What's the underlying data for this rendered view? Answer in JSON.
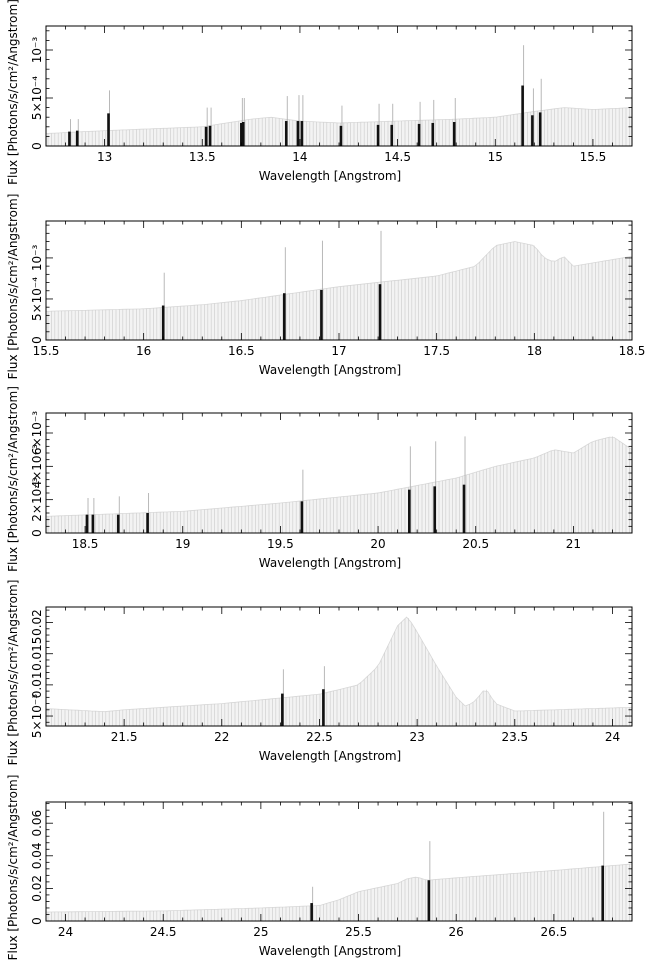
{
  "chart_data": [
    {
      "type": "bar",
      "xlabel": "Wavelength [Angstrom]",
      "ylabel": "Flux [Photons/s/cm²/Angstrom]",
      "xlim": [
        12.7,
        15.7
      ],
      "ylim": [
        0,
        0.00125
      ],
      "x_ticks": [
        {
          "v": 13,
          "label": "13"
        },
        {
          "v": 13.5,
          "label": "13.5"
        },
        {
          "v": 14,
          "label": "14"
        },
        {
          "v": 14.5,
          "label": "14.5"
        },
        {
          "v": 15,
          "label": "15"
        },
        {
          "v": 15.5,
          "label": "15.5"
        }
      ],
      "y_ticks": [
        {
          "v": 0,
          "label": "0"
        },
        {
          "v": 0.0005,
          "label": "5×10⁻⁴"
        },
        {
          "v": 0.001,
          "label": "10⁻³"
        }
      ],
      "continuum": {
        "x": [
          12.7,
          13.0,
          13.5,
          13.75,
          13.85,
          14.0,
          14.2,
          14.5,
          14.8,
          15.0,
          15.2,
          15.35,
          15.5,
          15.7
        ],
        "y": [
          0.00013,
          0.00016,
          0.0002,
          0.00028,
          0.0003,
          0.00026,
          0.00024,
          0.00026,
          0.00028,
          0.0003,
          0.00036,
          0.0004,
          0.00038,
          0.0004
        ]
      },
      "lines": [
        {
          "x": 12.82,
          "y": 0.00015,
          "err": 0.00028
        },
        {
          "x": 12.86,
          "y": 0.00016,
          "err": 0.00028
        },
        {
          "x": 13.02,
          "y": 0.00034,
          "err": 0.00058
        },
        {
          "x": 13.52,
          "y": 0.0002,
          "err": 0.0004
        },
        {
          "x": 13.54,
          "y": 0.00021,
          "err": 0.0004
        },
        {
          "x": 13.7,
          "y": 0.00024,
          "err": 0.0005
        },
        {
          "x": 13.71,
          "y": 0.00025,
          "err": 0.0005
        },
        {
          "x": 13.93,
          "y": 0.00026,
          "err": 0.00052
        },
        {
          "x": 13.99,
          "y": 0.00026,
          "err": 0.00053
        },
        {
          "x": 14.01,
          "y": 0.00026,
          "err": 0.00053
        },
        {
          "x": 14.21,
          "y": 0.00021,
          "err": 0.00042
        },
        {
          "x": 14.4,
          "y": 0.00022,
          "err": 0.00044
        },
        {
          "x": 14.47,
          "y": 0.00022,
          "err": 0.00044
        },
        {
          "x": 14.61,
          "y": 0.00023,
          "err": 0.00046
        },
        {
          "x": 14.68,
          "y": 0.00024,
          "err": 0.00048
        },
        {
          "x": 14.79,
          "y": 0.00025,
          "err": 0.0005
        },
        {
          "x": 15.14,
          "y": 0.00063,
          "err": 0.00105
        },
        {
          "x": 15.19,
          "y": 0.00032,
          "err": 0.0006
        },
        {
          "x": 15.23,
          "y": 0.00035,
          "err": 0.0007
        }
      ]
    },
    {
      "type": "bar",
      "xlabel": "Wavelength [Angstrom]",
      "ylabel": "Flux [Photons/s/cm²/Angstrom]",
      "xlim": [
        15.5,
        18.5
      ],
      "ylim": [
        0,
        0.00145
      ],
      "x_ticks": [
        {
          "v": 15.5,
          "label": "15.5"
        },
        {
          "v": 16,
          "label": "16"
        },
        {
          "v": 16.5,
          "label": "16.5"
        },
        {
          "v": 17,
          "label": "17"
        },
        {
          "v": 17.5,
          "label": "17.5"
        },
        {
          "v": 18,
          "label": "18"
        },
        {
          "v": 18.5,
          "label": "18.5"
        }
      ],
      "y_ticks": [
        {
          "v": 0,
          "label": "0"
        },
        {
          "v": 0.0005,
          "label": "5×10⁻⁴"
        },
        {
          "v": 0.001,
          "label": "10⁻³"
        }
      ],
      "continuum": {
        "x": [
          15.5,
          16.0,
          16.3,
          16.5,
          17.0,
          17.5,
          17.7,
          17.8,
          17.9,
          18.0,
          18.05,
          18.1,
          18.15,
          18.2,
          18.5
        ],
        "y": [
          0.00035,
          0.00038,
          0.00043,
          0.00048,
          0.00065,
          0.00078,
          0.0009,
          0.00115,
          0.0012,
          0.00115,
          0.001,
          0.00095,
          0.00102,
          0.0009,
          0.00102
        ]
      },
      "lines": [
        {
          "x": 16.1,
          "y": 0.00042,
          "err": 0.00082
        },
        {
          "x": 16.72,
          "y": 0.00057,
          "err": 0.00113
        },
        {
          "x": 16.91,
          "y": 0.00061,
          "err": 0.00121
        },
        {
          "x": 17.21,
          "y": 0.00068,
          "err": 0.00133
        }
      ]
    },
    {
      "type": "bar",
      "xlabel": "Wavelength [Angstrom]",
      "ylabel": "Flux [Photons/s/cm²/Angstrom]",
      "xlim": [
        18.3,
        21.3
      ],
      "ylim": [
        0,
        0.0072
      ],
      "x_ticks": [
        {
          "v": 18.5,
          "label": "18.5"
        },
        {
          "v": 19,
          "label": "19"
        },
        {
          "v": 19.5,
          "label": "19.5"
        },
        {
          "v": 20,
          "label": "20"
        },
        {
          "v": 20.5,
          "label": "20.5"
        },
        {
          "v": 21,
          "label": "21"
        }
      ],
      "y_ticks": [
        {
          "v": 0,
          "label": "0"
        },
        {
          "v": 0.002,
          "label": "2×10⁻³"
        },
        {
          "v": 0.004,
          "label": "4×10⁻³"
        },
        {
          "v": 0.006,
          "label": "6×10⁻³"
        }
      ],
      "continuum": {
        "x": [
          18.3,
          19.0,
          19.5,
          20.0,
          20.4,
          20.6,
          20.8,
          20.9,
          21.0,
          21.1,
          21.2,
          21.3
        ],
        "y": [
          0.001,
          0.0013,
          0.0018,
          0.0024,
          0.0033,
          0.004,
          0.0045,
          0.005,
          0.0048,
          0.0055,
          0.0058,
          0.005
        ]
      },
      "lines": [
        {
          "x": 18.51,
          "y": 0.0011,
          "err": 0.0021
        },
        {
          "x": 18.54,
          "y": 0.0011,
          "err": 0.0021
        },
        {
          "x": 18.67,
          "y": 0.0011,
          "err": 0.0022
        },
        {
          "x": 18.82,
          "y": 0.0012,
          "err": 0.0024
        },
        {
          "x": 19.61,
          "y": 0.0019,
          "err": 0.0038
        },
        {
          "x": 20.16,
          "y": 0.0026,
          "err": 0.0052
        },
        {
          "x": 20.29,
          "y": 0.0028,
          "err": 0.0055
        },
        {
          "x": 20.44,
          "y": 0.0029,
          "err": 0.0058
        }
      ]
    },
    {
      "type": "bar",
      "xlabel": "Wavelength [Angstrom]",
      "ylabel": "Flux [Photons/s/cm²/Angstrom]",
      "xlim": [
        21.1,
        24.1
      ],
      "ylim": [
        0.0034,
        0.0225
      ],
      "x_ticks": [
        {
          "v": 21.5,
          "label": "21.5"
        },
        {
          "v": 22,
          "label": "22"
        },
        {
          "v": 22.5,
          "label": "22.5"
        },
        {
          "v": 23,
          "label": "23"
        },
        {
          "v": 23.5,
          "label": "23.5"
        },
        {
          "v": 24,
          "label": "24"
        }
      ],
      "y_ticks": [
        {
          "v": 0.005,
          "label": "5×10⁻³"
        },
        {
          "v": 0.01,
          "label": "0.01"
        },
        {
          "v": 0.015,
          "label": "0.015"
        },
        {
          "v": 0.02,
          "label": "0.02"
        }
      ],
      "continuum": {
        "x": [
          21.1,
          21.4,
          21.5,
          22.0,
          22.5,
          22.7,
          22.8,
          22.9,
          22.95,
          23.0,
          23.1,
          23.2,
          23.25,
          23.3,
          23.35,
          23.4,
          23.5,
          24.1
        ],
        "y": [
          0.0062,
          0.0057,
          0.006,
          0.007,
          0.0085,
          0.01,
          0.013,
          0.0195,
          0.021,
          0.0185,
          0.013,
          0.008,
          0.0065,
          0.0075,
          0.0095,
          0.007,
          0.0058,
          0.0064
        ]
      },
      "lines": [
        {
          "x": 22.31,
          "y": 0.0086,
          "err": 0.0125
        },
        {
          "x": 22.52,
          "y": 0.0093,
          "err": 0.013
        }
      ]
    },
    {
      "type": "bar",
      "xlabel": "Wavelength [Angstrom]",
      "ylabel": "Flux [Photons/s/cm²/Angstrom]",
      "xlim": [
        23.9,
        26.9
      ],
      "ylim": [
        0,
        0.073
      ],
      "x_ticks": [
        {
          "v": 24,
          "label": "24"
        },
        {
          "v": 24.5,
          "label": "24.5"
        },
        {
          "v": 25,
          "label": "25"
        },
        {
          "v": 25.5,
          "label": "25.5"
        },
        {
          "v": 26,
          "label": "26"
        },
        {
          "v": 26.5,
          "label": "26.5"
        }
      ],
      "y_ticks": [
        {
          "v": 0,
          "label": "0"
        },
        {
          "v": 0.02,
          "label": "0.02"
        },
        {
          "v": 0.04,
          "label": "0.04"
        },
        {
          "v": 0.06,
          "label": "0.06"
        }
      ],
      "continuum": {
        "x": [
          23.9,
          24.5,
          25.0,
          25.3,
          25.4,
          25.5,
          25.6,
          25.7,
          25.75,
          25.8,
          25.85,
          26.0,
          26.5,
          26.9
        ],
        "y": [
          0.0055,
          0.0062,
          0.008,
          0.0095,
          0.013,
          0.018,
          0.0205,
          0.023,
          0.026,
          0.027,
          0.025,
          0.0265,
          0.031,
          0.035
        ]
      },
      "lines": [
        {
          "x": 25.26,
          "y": 0.011,
          "err": 0.021
        },
        {
          "x": 25.86,
          "y": 0.025,
          "err": 0.049
        },
        {
          "x": 26.75,
          "y": 0.034,
          "err": 0.067
        }
      ]
    }
  ]
}
